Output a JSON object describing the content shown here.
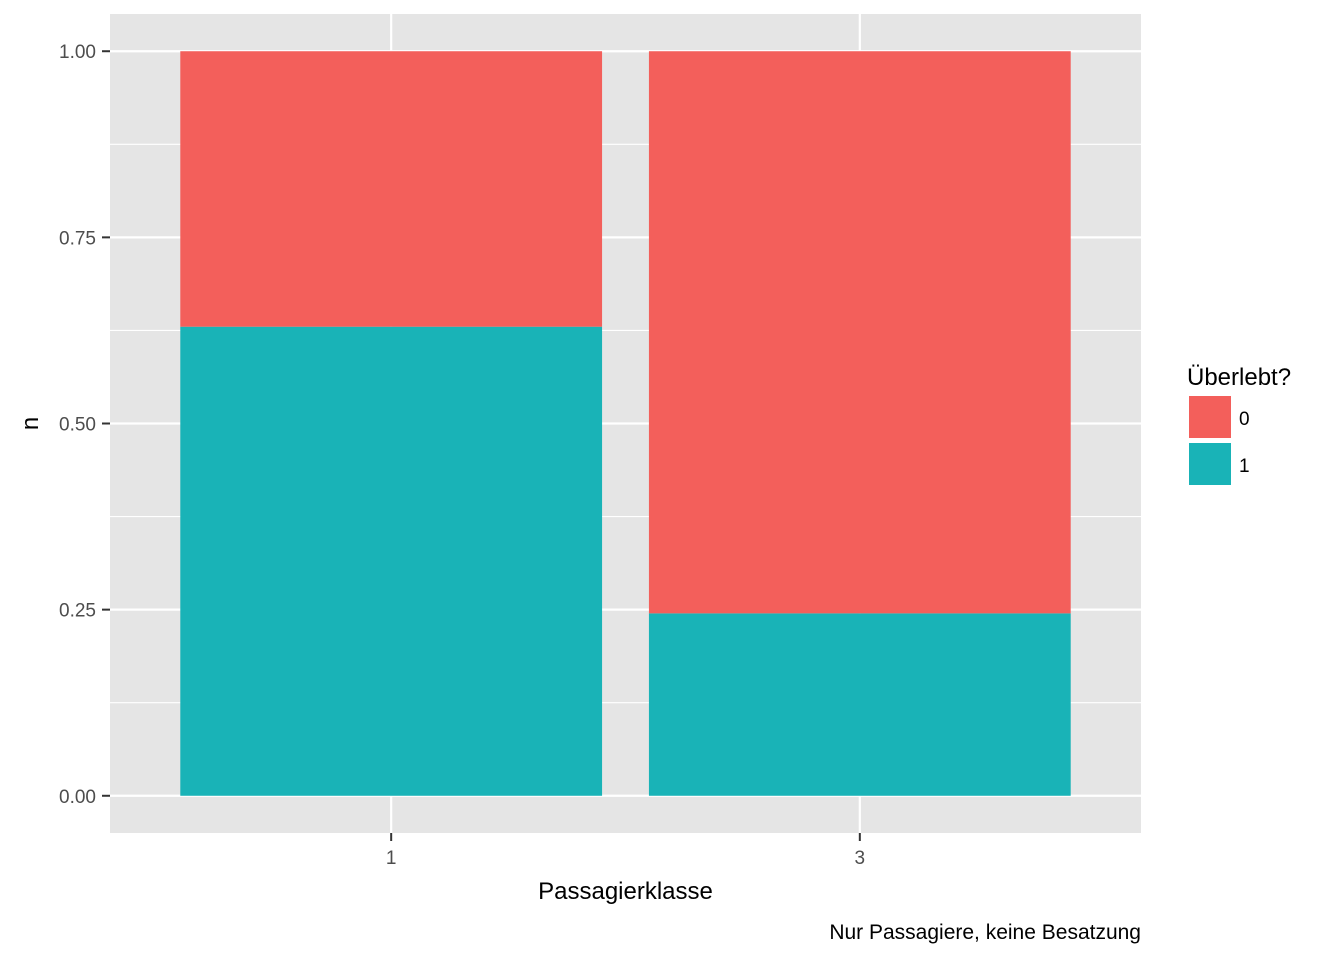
{
  "chart_data": {
    "type": "bar",
    "stacked": true,
    "position": "fill",
    "categories": [
      "1",
      "3"
    ],
    "series": [
      {
        "name": "0",
        "values": [
          0.37,
          0.755
        ],
        "color": "#F35F5B"
      },
      {
        "name": "1",
        "values": [
          0.63,
          0.245
        ],
        "color": "#19B3B7"
      }
    ],
    "stack_order": [
      "1",
      "0"
    ],
    "xlabel": "Passagierklasse",
    "ylabel": "n",
    "caption": "Nur Passagiere, keine Besatzung",
    "legend_title": "Überlebt?",
    "legend_position": "right",
    "ylim": [
      -0.05,
      1.05
    ],
    "yticks": [
      0,
      0.25,
      0.5,
      0.75,
      1.0
    ],
    "ytick_labels": [
      "0.00",
      "0.25",
      "0.50",
      "0.75",
      "1.00"
    ],
    "grid": true,
    "panel_background": "#E5E5E5",
    "grid_color": "#FFFFFF"
  }
}
